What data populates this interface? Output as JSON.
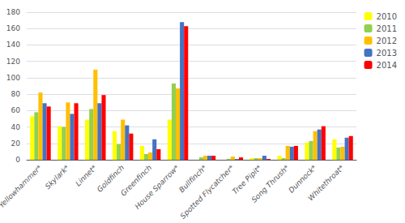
{
  "chart_data": {
    "type": "bar",
    "categories": [
      "Yellowhammer*",
      "Skylark*",
      "Linnet*",
      "Goldfinch",
      "Greenfinch",
      "House Sparrow*",
      "Bullfinch*",
      "Spotted Flycatcher*",
      "Tree Pipit*",
      "Song Thrush*",
      "Dunnock*",
      "Whitethroat*"
    ],
    "series": [
      {
        "name": "2010",
        "color": "#ffff00",
        "values": [
          53,
          41,
          49,
          35,
          17,
          49,
          0,
          0,
          2,
          5,
          21,
          25
        ]
      },
      {
        "name": "2011",
        "color": "#92d050",
        "values": [
          58,
          40,
          62,
          19,
          7,
          93,
          3,
          1,
          2,
          2,
          23,
          15
        ]
      },
      {
        "name": "2012",
        "color": "#ffc000",
        "values": [
          82,
          70,
          110,
          49,
          9,
          87,
          5,
          4,
          2,
          17,
          35,
          16
        ]
      },
      {
        "name": "2013",
        "color": "#4472c4",
        "values": [
          69,
          56,
          69,
          42,
          25,
          168,
          5,
          1,
          5,
          16,
          37,
          27
        ]
      },
      {
        "name": "2014",
        "color": "#ff0000",
        "values": [
          65,
          69,
          79,
          32,
          13,
          163,
          5,
          3,
          1,
          17,
          41,
          29
        ]
      }
    ],
    "ylim": [
      0,
      180
    ],
    "yticks": [
      0,
      20,
      40,
      60,
      80,
      100,
      120,
      140,
      160,
      180
    ],
    "grid": true,
    "legend": "upper right"
  }
}
